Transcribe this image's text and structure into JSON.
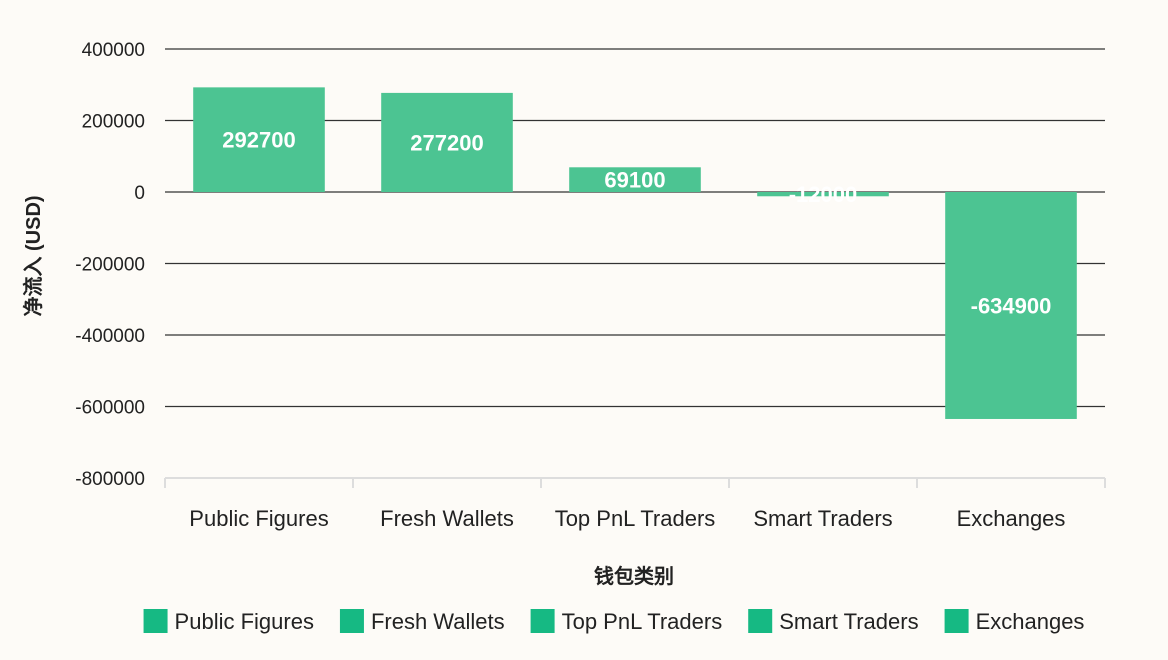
{
  "chart_data": {
    "type": "bar",
    "categories": [
      "Public Figures",
      "Fresh Wallets",
      "Top PnL Traders",
      "Smart Traders",
      "Exchanges"
    ],
    "values": [
      292700,
      277200,
      69100,
      -12000,
      -634900
    ],
    "data_labels": [
      "292700",
      "277200",
      "69100",
      "-12000",
      "-634900"
    ],
    "xlabel": "钱包类别",
    "ylabel": "净流入 (USD)",
    "ylim": [
      -800000,
      400000
    ],
    "yticks": [
      400000,
      200000,
      0,
      -200000,
      -400000,
      -600000,
      -800000
    ],
    "ytick_labels": [
      "400000",
      "200000",
      "0",
      "-200000",
      "-400000",
      "-600000",
      "-800000"
    ],
    "grid": true,
    "legend": {
      "placement": "bottom",
      "entries": [
        "Public Figures",
        "Fresh Wallets",
        "Top PnL Traders",
        "Smart Traders",
        "Exchanges"
      ]
    },
    "colors": {
      "bar": "#4cc492",
      "legend_swatch": "#16b983",
      "gridline": "#333333",
      "axis": "#dddddd"
    }
  }
}
